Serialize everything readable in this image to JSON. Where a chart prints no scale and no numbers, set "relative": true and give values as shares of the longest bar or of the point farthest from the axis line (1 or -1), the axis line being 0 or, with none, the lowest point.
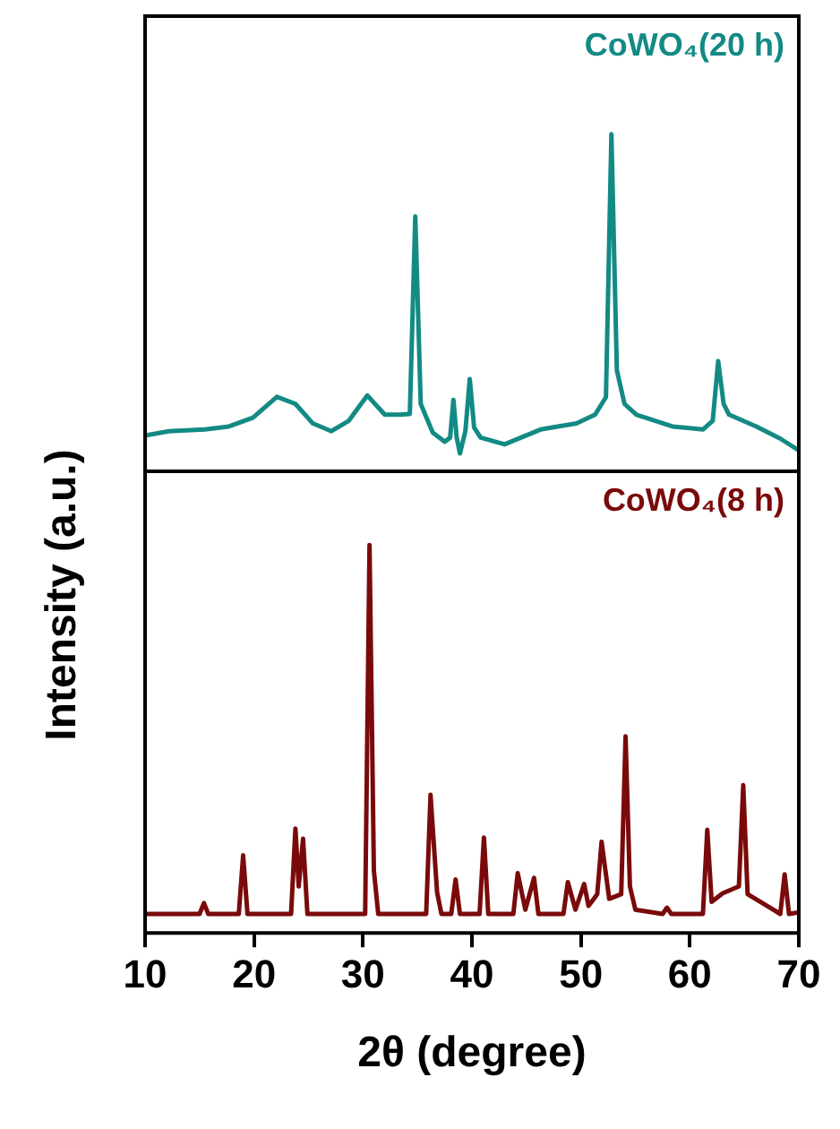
{
  "chart_data": [
    {
      "type": "line",
      "relative": true,
      "tick_labels": false,
      "grid": false,
      "marker": "none",
      "xlim": [
        10,
        70
      ],
      "xticks": [
        10,
        20,
        30,
        40,
        50,
        60,
        70
      ],
      "series": [
        {
          "name": "CoWO₄(20 h)",
          "color": "#138a84",
          "x": [
            10,
            12.2,
            15.5,
            17.7,
            19.9,
            22.1,
            23.8,
            25.4,
            27.1,
            28.7,
            30.4,
            32.0,
            33.4,
            34.3,
            34.8,
            35.3,
            36.4,
            37.5,
            38.0,
            38.3,
            38.6,
            38.9,
            39.4,
            39.8,
            40.2,
            40.8,
            43.0,
            46.3,
            49.6,
            51.3,
            52.3,
            52.8,
            53.3,
            54.0,
            55.1,
            58.4,
            61.2,
            62.1,
            62.6,
            63.1,
            63.6,
            66.1,
            68.3,
            70
          ],
          "values": [
            0.106,
            0.119,
            0.124,
            0.133,
            0.159,
            0.221,
            0.2,
            0.142,
            0.119,
            0.15,
            0.225,
            0.168,
            0.168,
            0.17,
            0.756,
            0.2,
            0.115,
            0.088,
            0.1,
            0.212,
            0.1,
            0.053,
            0.12,
            0.274,
            0.13,
            0.1,
            0.08,
            0.124,
            0.142,
            0.168,
            0.22,
            1.0,
            0.3,
            0.2,
            0.168,
            0.133,
            0.124,
            0.15,
            0.327,
            0.2,
            0.168,
            0.133,
            0.097,
            0.062
          ]
        }
      ]
    },
    {
      "type": "line",
      "relative": true,
      "tick_labels": "x",
      "grid": false,
      "marker": "none",
      "xlim": [
        10,
        70
      ],
      "xticks": [
        10,
        20,
        30,
        40,
        50,
        60,
        70
      ],
      "xlabel": "2θ (degree)",
      "ylabel": "Intensity (a.u.)",
      "series": [
        {
          "name": "CoWO₄(8 h)",
          "color": "#7a0a0a",
          "x": [
            10,
            15.0,
            15.4,
            15.8,
            18.6,
            19.0,
            19.4,
            23.4,
            23.8,
            24.1,
            24.5,
            24.9,
            30.2,
            30.6,
            31.0,
            31.4,
            35.8,
            36.2,
            36.8,
            37.2,
            38.1,
            38.5,
            38.9,
            40.7,
            41.1,
            41.5,
            43.8,
            44.2,
            44.9,
            45.7,
            46.1,
            48.4,
            48.8,
            49.5,
            50.3,
            50.7,
            51.5,
            51.9,
            52.6,
            53.7,
            54.1,
            54.5,
            55.0,
            57.5,
            57.9,
            58.3,
            61.2,
            61.6,
            62.0,
            63.0,
            64.5,
            64.9,
            65.3,
            68.3,
            68.7,
            69.1,
            70
          ],
          "values": [
            0.049,
            0.049,
            0.077,
            0.049,
            0.049,
            0.2,
            0.049,
            0.049,
            0.269,
            0.12,
            0.243,
            0.049,
            0.049,
            1.0,
            0.161,
            0.049,
            0.049,
            0.356,
            0.105,
            0.049,
            0.049,
            0.138,
            0.049,
            0.049,
            0.246,
            0.049,
            0.049,
            0.154,
            0.06,
            0.142,
            0.049,
            0.049,
            0.131,
            0.06,
            0.126,
            0.07,
            0.1,
            0.235,
            0.088,
            0.1,
            0.507,
            0.12,
            0.06,
            0.049,
            0.065,
            0.049,
            0.049,
            0.266,
            0.08,
            0.102,
            0.12,
            0.381,
            0.1,
            0.049,
            0.151,
            0.049,
            0.053
          ]
        }
      ]
    }
  ]
}
